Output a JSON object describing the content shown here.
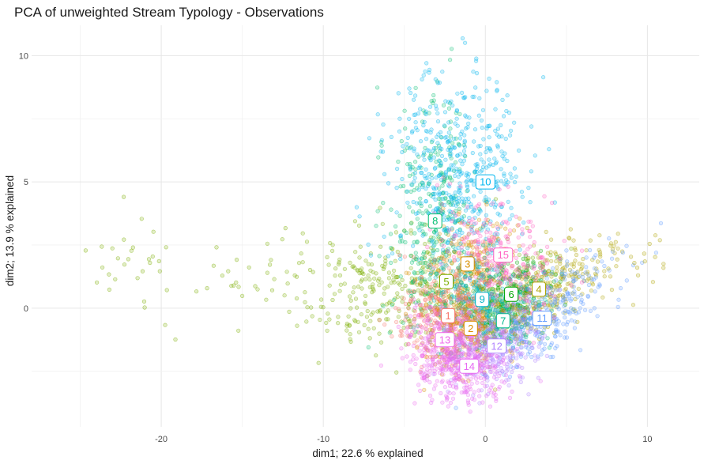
{
  "chart_data": {
    "type": "scatter",
    "title": "PCA of unweighted Stream Typology - Observations",
    "xlabel": "dim1; 22.6 % explained",
    "ylabel": "dim2; 13.9 % explained",
    "xlim": [
      -28,
      13.2
    ],
    "ylim": [
      -4.7,
      11.2
    ],
    "x_ticks": [
      -20,
      -10,
      0,
      10
    ],
    "y_ticks": [
      0,
      5,
      10
    ],
    "x_tick_labels": [
      "-20",
      "-10",
      "0",
      "10"
    ],
    "y_tick_labels": [
      "0",
      "5",
      "10"
    ],
    "grid": true,
    "point_style": "semi-transparent circles",
    "series": [
      {
        "label": "1",
        "color": "#F8766D",
        "centroid": [
          -2.3,
          -0.3
        ]
      },
      {
        "label": "2",
        "color": "#DB8E00",
        "centroid": [
          -0.9,
          -0.8
        ]
      },
      {
        "label": "3",
        "color": "#D89000",
        "centroid": [
          -1.1,
          1.75
        ]
      },
      {
        "label": "4",
        "color": "#AEA200",
        "centroid": [
          3.3,
          0.75
        ]
      },
      {
        "label": "5",
        "color": "#7CAE00",
        "centroid": [
          -2.4,
          1.05
        ]
      },
      {
        "label": "6",
        "color": "#00A600",
        "centroid": [
          1.6,
          0.55
        ]
      },
      {
        "label": "7",
        "color": "#00B98B",
        "centroid": [
          1.1,
          -0.5
        ]
      },
      {
        "label": "8",
        "color": "#00BE70",
        "centroid": [
          -3.1,
          3.45
        ]
      },
      {
        "label": "9",
        "color": "#00B4C5",
        "centroid": [
          -0.2,
          0.35
        ]
      },
      {
        "label": "10",
        "color": "#00B5EE",
        "centroid": [
          0.0,
          5.0
        ]
      },
      {
        "label": "11",
        "color": "#619CFF",
        "centroid": [
          3.5,
          -0.4
        ]
      },
      {
        "label": "12",
        "color": "#B385FF",
        "centroid": [
          0.7,
          -1.5
        ]
      },
      {
        "label": "13",
        "color": "#EF67EB",
        "centroid": [
          -2.5,
          -1.25
        ]
      },
      {
        "label": "14",
        "color": "#E76BF3",
        "centroid": [
          -1.0,
          -2.3
        ]
      },
      {
        "label": "15",
        "color": "#FF61C3",
        "centroid": [
          1.1,
          2.1
        ]
      }
    ]
  }
}
